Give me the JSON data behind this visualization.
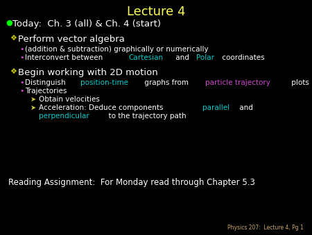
{
  "bg_color": "#000000",
  "title": "Lecture 4",
  "title_color": "#ffff55",
  "title_fontsize": 13,
  "bullet1_color": "#00ff00",
  "bullet1_text": "Today:  Ch. 3 (all) & Ch. 4 (start)",
  "white": "#ffffff",
  "cyan": "#00cccc",
  "magenta": "#cc44cc",
  "diamond_color": "#cccc00",
  "sub_bullet_color": "#cc44cc",
  "arrow_color": "#cccc44",
  "reading_color": "#ffffff",
  "footer_color": "#ccaa66",
  "section1_header": "Perform vector algebra",
  "section1_sub1": "(addition & subtraction) graphically or numerically",
  "section1_sub2_parts": [
    "Interconvert between ",
    "Cartesian",
    " and ",
    "Polar",
    " coordinates"
  ],
  "section1_sub2_colors": [
    "#ffffff",
    "#00cccc",
    "#ffffff",
    "#00cccc",
    "#ffffff"
  ],
  "section2_header": "Begin working with 2D motion",
  "section2_sub1_parts": [
    "Distinguish ",
    "position-time",
    " graphs from ",
    "particle trajectory",
    " plots"
  ],
  "section2_sub1_colors": [
    "#ffffff",
    "#00cccc",
    "#ffffff",
    "#cc44cc",
    "#ffffff"
  ],
  "section2_sub2": "Trajectories",
  "section2_sub2a": "Obtain velocities",
  "section2_sub2b_parts": [
    "Acceleration: Deduce components ",
    "parallel",
    " and"
  ],
  "section2_sub2b_colors": [
    "#ffffff",
    "#00cccc",
    "#ffffff"
  ],
  "section2_sub2c_parts": [
    "perpendicular",
    "  to the trajectory path"
  ],
  "section2_sub2c_colors": [
    "#00cccc",
    "#ffffff"
  ],
  "reading": "Reading Assignment:  For Monday read through Chapter 5.3",
  "footer": "Physics 207:  Lecture 4, Pg 1",
  "main_fontsize": 8.5,
  "header_fontsize": 9.5,
  "bullet_fontsize": 7.5
}
